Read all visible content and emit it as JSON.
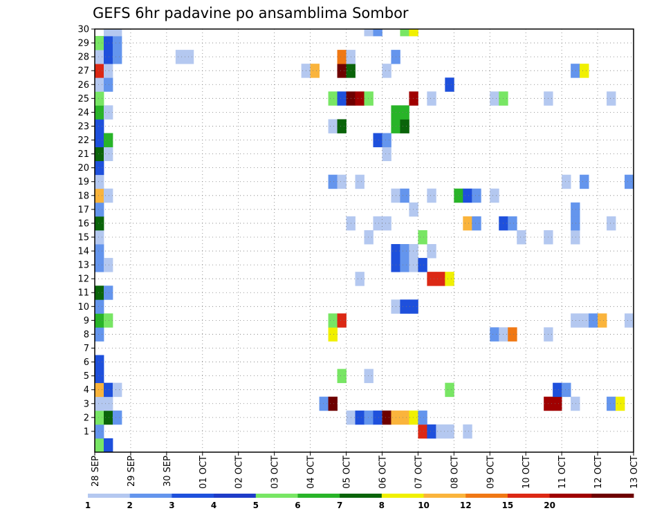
{
  "chart_data": {
    "type": "heatmap",
    "title": "GEFS 6hr padavine po ansamblima Sombor",
    "xlabel": "",
    "ylabel": "",
    "x_tick_labels": [
      "28 SEP",
      "29 SEP",
      "30 SEP",
      "01 OCT",
      "02 OCT",
      "03 OCT",
      "04 OCT",
      "05 OCT",
      "06 OCT",
      "07 OCT",
      "08 OCT",
      "09 OCT",
      "10 OCT",
      "11 OCT",
      "12 OCT",
      "13 OCT"
    ],
    "y_tick_labels": [
      "1",
      "2",
      "3",
      "4",
      "5",
      "6",
      "7",
      "8",
      "9",
      "10",
      "11",
      "12",
      "13",
      "14",
      "15",
      "16",
      "17",
      "18",
      "19",
      "20",
      "21",
      "22",
      "23",
      "24",
      "25",
      "26",
      "27",
      "28",
      "29",
      "30"
    ],
    "x_range_steps": [
      0,
      60
    ],
    "y_range_members": [
      0,
      30
    ],
    "grid": true,
    "colorbar": {
      "levels": [
        "1",
        "2",
        "3",
        "4",
        "5",
        "6",
        "7",
        "8",
        "10",
        "12",
        "15",
        "20"
      ],
      "colors": [
        "#b4c8f0",
        "#6495ed",
        "#1e50dc",
        "#1e3cc8",
        "#78e664",
        "#28b428",
        "#0a640a",
        "#f0f000",
        "#fab43c",
        "#f07814",
        "#dc2814",
        "#a00000",
        "#6e0000"
      ]
    },
    "cells": [
      {
        "member": 0,
        "step": 0,
        "color": "#78e664"
      },
      {
        "member": 0,
        "step": 1,
        "color": "#1e50dc"
      },
      {
        "member": 1,
        "step": 0,
        "color": "#6495ed"
      },
      {
        "member": 1,
        "step": 36,
        "color": "#dc2814"
      },
      {
        "member": 1,
        "step": 37,
        "color": "#1e50dc"
      },
      {
        "member": 1,
        "step": 38,
        "color": "#b4c8f0"
      },
      {
        "member": 1,
        "step": 39,
        "color": "#b4c8f0"
      },
      {
        "member": 1,
        "step": 41,
        "color": "#b4c8f0"
      },
      {
        "member": 2,
        "step": 0,
        "color": "#78e664"
      },
      {
        "member": 2,
        "step": 1,
        "color": "#0a640a"
      },
      {
        "member": 2,
        "step": 2,
        "color": "#6495ed"
      },
      {
        "member": 2,
        "step": 28,
        "color": "#b4c8f0"
      },
      {
        "member": 2,
        "step": 29,
        "color": "#1e50dc"
      },
      {
        "member": 2,
        "step": 30,
        "color": "#6495ed"
      },
      {
        "member": 2,
        "step": 31,
        "color": "#1e50dc"
      },
      {
        "member": 2,
        "step": 32,
        "color": "#6e0000"
      },
      {
        "member": 2,
        "step": 33,
        "color": "#fab43c"
      },
      {
        "member": 2,
        "step": 34,
        "color": "#fab43c"
      },
      {
        "member": 2,
        "step": 35,
        "color": "#f0f000"
      },
      {
        "member": 2,
        "step": 36,
        "color": "#6495ed"
      },
      {
        "member": 3,
        "step": 0,
        "color": "#b4c8f0"
      },
      {
        "member": 3,
        "step": 1,
        "color": "#b4c8f0"
      },
      {
        "member": 3,
        "step": 25,
        "color": "#6495ed"
      },
      {
        "member": 3,
        "step": 26,
        "color": "#6e0000"
      },
      {
        "member": 3,
        "step": 50,
        "color": "#a00000"
      },
      {
        "member": 3,
        "step": 51,
        "color": "#a00000"
      },
      {
        "member": 3,
        "step": 53,
        "color": "#b4c8f0"
      },
      {
        "member": 3,
        "step": 57,
        "color": "#6495ed"
      },
      {
        "member": 3,
        "step": 58,
        "color": "#f0f000"
      },
      {
        "member": 4,
        "step": 0,
        "color": "#fab43c"
      },
      {
        "member": 4,
        "step": 1,
        "color": "#1e50dc"
      },
      {
        "member": 4,
        "step": 2,
        "color": "#b4c8f0"
      },
      {
        "member": 4,
        "step": 39,
        "color": "#78e664"
      },
      {
        "member": 4,
        "step": 51,
        "color": "#1e50dc"
      },
      {
        "member": 4,
        "step": 52,
        "color": "#6495ed"
      },
      {
        "member": 5,
        "step": 0,
        "color": "#1e50dc"
      },
      {
        "member": 5,
        "step": 27,
        "color": "#78e664"
      },
      {
        "member": 5,
        "step": 30,
        "color": "#b4c8f0"
      },
      {
        "member": 6,
        "step": 0,
        "color": "#1e50dc"
      },
      {
        "member": 8,
        "step": 0,
        "color": "#6495ed"
      },
      {
        "member": 8,
        "step": 26,
        "color": "#f0f000"
      },
      {
        "member": 8,
        "step": 44,
        "color": "#6495ed"
      },
      {
        "member": 8,
        "step": 45,
        "color": "#b4c8f0"
      },
      {
        "member": 8,
        "step": 46,
        "color": "#f07814"
      },
      {
        "member": 8,
        "step": 50,
        "color": "#b4c8f0"
      },
      {
        "member": 9,
        "step": 0,
        "color": "#28b428"
      },
      {
        "member": 9,
        "step": 1,
        "color": "#78e664"
      },
      {
        "member": 9,
        "step": 26,
        "color": "#78e664"
      },
      {
        "member": 9,
        "step": 27,
        "color": "#dc2814"
      },
      {
        "member": 9,
        "step": 53,
        "color": "#b4c8f0"
      },
      {
        "member": 9,
        "step": 54,
        "color": "#b4c8f0"
      },
      {
        "member": 9,
        "step": 55,
        "color": "#6495ed"
      },
      {
        "member": 9,
        "step": 56,
        "color": "#fab43c"
      },
      {
        "member": 9,
        "step": 59,
        "color": "#b4c8f0"
      },
      {
        "member": 10,
        "step": 0,
        "color": "#6495ed"
      },
      {
        "member": 10,
        "step": 33,
        "color": "#b4c8f0"
      },
      {
        "member": 10,
        "step": 34,
        "color": "#1e50dc"
      },
      {
        "member": 10,
        "step": 35,
        "color": "#1e50dc"
      },
      {
        "member": 11,
        "step": 0,
        "color": "#0a640a"
      },
      {
        "member": 11,
        "step": 1,
        "color": "#6495ed"
      },
      {
        "member": 12,
        "step": 29,
        "color": "#b4c8f0"
      },
      {
        "member": 12,
        "step": 37,
        "color": "#dc2814"
      },
      {
        "member": 12,
        "step": 38,
        "color": "#dc2814"
      },
      {
        "member": 12,
        "step": 39,
        "color": "#f0f000"
      },
      {
        "member": 13,
        "step": 0,
        "color": "#6495ed"
      },
      {
        "member": 13,
        "step": 1,
        "color": "#b4c8f0"
      },
      {
        "member": 13,
        "step": 33,
        "color": "#1e50dc"
      },
      {
        "member": 13,
        "step": 34,
        "color": "#6495ed"
      },
      {
        "member": 13,
        "step": 35,
        "color": "#b4c8f0"
      },
      {
        "member": 13,
        "step": 36,
        "color": "#1e50dc"
      },
      {
        "member": 14,
        "step": 0,
        "color": "#6495ed"
      },
      {
        "member": 14,
        "step": 33,
        "color": "#1e50dc"
      },
      {
        "member": 14,
        "step": 34,
        "color": "#6495ed"
      },
      {
        "member": 14,
        "step": 35,
        "color": "#b4c8f0"
      },
      {
        "member": 14,
        "step": 37,
        "color": "#b4c8f0"
      },
      {
        "member": 15,
        "step": 0,
        "color": "#b4c8f0"
      },
      {
        "member": 15,
        "step": 30,
        "color": "#b4c8f0"
      },
      {
        "member": 15,
        "step": 36,
        "color": "#78e664"
      },
      {
        "member": 15,
        "step": 47,
        "color": "#b4c8f0"
      },
      {
        "member": 15,
        "step": 50,
        "color": "#b4c8f0"
      },
      {
        "member": 15,
        "step": 53,
        "color": "#b4c8f0"
      },
      {
        "member": 16,
        "step": 0,
        "color": "#0a640a"
      },
      {
        "member": 16,
        "step": 28,
        "color": "#b4c8f0"
      },
      {
        "member": 16,
        "step": 31,
        "color": "#b4c8f0"
      },
      {
        "member": 16,
        "step": 32,
        "color": "#b4c8f0"
      },
      {
        "member": 16,
        "step": 41,
        "color": "#fab43c"
      },
      {
        "member": 16,
        "step": 42,
        "color": "#6495ed"
      },
      {
        "member": 16,
        "step": 45,
        "color": "#1e50dc"
      },
      {
        "member": 16,
        "step": 46,
        "color": "#6495ed"
      },
      {
        "member": 16,
        "step": 53,
        "color": "#6495ed"
      },
      {
        "member": 16,
        "step": 57,
        "color": "#b4c8f0"
      },
      {
        "member": 17,
        "step": 0,
        "color": "#6495ed"
      },
      {
        "member": 17,
        "step": 35,
        "color": "#b4c8f0"
      },
      {
        "member": 17,
        "step": 53,
        "color": "#6495ed"
      },
      {
        "member": 18,
        "step": 0,
        "color": "#fab43c"
      },
      {
        "member": 18,
        "step": 1,
        "color": "#b4c8f0"
      },
      {
        "member": 18,
        "step": 33,
        "color": "#b4c8f0"
      },
      {
        "member": 18,
        "step": 34,
        "color": "#6495ed"
      },
      {
        "member": 18,
        "step": 37,
        "color": "#b4c8f0"
      },
      {
        "member": 18,
        "step": 40,
        "color": "#28b428"
      },
      {
        "member": 18,
        "step": 41,
        "color": "#1e50dc"
      },
      {
        "member": 18,
        "step": 42,
        "color": "#6495ed"
      },
      {
        "member": 18,
        "step": 44,
        "color": "#b4c8f0"
      },
      {
        "member": 19,
        "step": 0,
        "color": "#b4c8f0"
      },
      {
        "member": 19,
        "step": 26,
        "color": "#6495ed"
      },
      {
        "member": 19,
        "step": 27,
        "color": "#b4c8f0"
      },
      {
        "member": 19,
        "step": 29,
        "color": "#b4c8f0"
      },
      {
        "member": 19,
        "step": 52,
        "color": "#b4c8f0"
      },
      {
        "member": 19,
        "step": 54,
        "color": "#6495ed"
      },
      {
        "member": 19,
        "step": 59,
        "color": "#6495ed"
      },
      {
        "member": 20,
        "step": 0,
        "color": "#1e50dc"
      },
      {
        "member": 21,
        "step": 0,
        "color": "#0a640a"
      },
      {
        "member": 21,
        "step": 1,
        "color": "#b4c8f0"
      },
      {
        "member": 21,
        "step": 32,
        "color": "#b4c8f0"
      },
      {
        "member": 22,
        "step": 0,
        "color": "#1e50dc"
      },
      {
        "member": 22,
        "step": 1,
        "color": "#28b428"
      },
      {
        "member": 22,
        "step": 31,
        "color": "#1e50dc"
      },
      {
        "member": 22,
        "step": 32,
        "color": "#6495ed"
      },
      {
        "member": 23,
        "step": 0,
        "color": "#1e50dc"
      },
      {
        "member": 23,
        "step": 26,
        "color": "#b4c8f0"
      },
      {
        "member": 23,
        "step": 27,
        "color": "#0a640a"
      },
      {
        "member": 23,
        "step": 33,
        "color": "#28b428"
      },
      {
        "member": 23,
        "step": 34,
        "color": "#0a640a"
      },
      {
        "member": 24,
        "step": 0,
        "color": "#28b428"
      },
      {
        "member": 24,
        "step": 1,
        "color": "#b4c8f0"
      },
      {
        "member": 24,
        "step": 33,
        "color": "#28b428"
      },
      {
        "member": 24,
        "step": 34,
        "color": "#28b428"
      },
      {
        "member": 25,
        "step": 0,
        "color": "#78e664"
      },
      {
        "member": 25,
        "step": 26,
        "color": "#78e664"
      },
      {
        "member": 25,
        "step": 27,
        "color": "#1e50dc"
      },
      {
        "member": 25,
        "step": 28,
        "color": "#6e0000"
      },
      {
        "member": 25,
        "step": 29,
        "color": "#a00000"
      },
      {
        "member": 25,
        "step": 30,
        "color": "#78e664"
      },
      {
        "member": 25,
        "step": 35,
        "color": "#a00000"
      },
      {
        "member": 25,
        "step": 37,
        "color": "#b4c8f0"
      },
      {
        "member": 25,
        "step": 44,
        "color": "#b4c8f0"
      },
      {
        "member": 25,
        "step": 45,
        "color": "#78e664"
      },
      {
        "member": 25,
        "step": 50,
        "color": "#b4c8f0"
      },
      {
        "member": 25,
        "step": 57,
        "color": "#b4c8f0"
      },
      {
        "member": 26,
        "step": 0,
        "color": "#b4c8f0"
      },
      {
        "member": 26,
        "step": 1,
        "color": "#6495ed"
      },
      {
        "member": 26,
        "step": 39,
        "color": "#1e50dc"
      },
      {
        "member": 27,
        "step": 0,
        "color": "#dc2814"
      },
      {
        "member": 27,
        "step": 1,
        "color": "#b4c8f0"
      },
      {
        "member": 27,
        "step": 23,
        "color": "#b4c8f0"
      },
      {
        "member": 27,
        "step": 24,
        "color": "#fab43c"
      },
      {
        "member": 27,
        "step": 27,
        "color": "#6e0000"
      },
      {
        "member": 27,
        "step": 28,
        "color": "#0a640a"
      },
      {
        "member": 27,
        "step": 32,
        "color": "#b4c8f0"
      },
      {
        "member": 27,
        "step": 53,
        "color": "#6495ed"
      },
      {
        "member": 27,
        "step": 54,
        "color": "#f0f000"
      },
      {
        "member": 28,
        "step": 0,
        "color": "#b4c8f0"
      },
      {
        "member": 28,
        "step": 1,
        "color": "#1e50dc"
      },
      {
        "member": 28,
        "step": 2,
        "color": "#6495ed"
      },
      {
        "member": 28,
        "step": 9,
        "color": "#b4c8f0"
      },
      {
        "member": 28,
        "step": 10,
        "color": "#b4c8f0"
      },
      {
        "member": 28,
        "step": 27,
        "color": "#f07814"
      },
      {
        "member": 28,
        "step": 28,
        "color": "#b4c8f0"
      },
      {
        "member": 28,
        "step": 33,
        "color": "#6495ed"
      },
      {
        "member": 29,
        "step": 0,
        "color": "#78e664"
      },
      {
        "member": 29,
        "step": 1,
        "color": "#1e50dc"
      },
      {
        "member": 29,
        "step": 2,
        "color": "#6495ed"
      },
      {
        "member": 30,
        "step": 1,
        "color": "#b4c8f0"
      },
      {
        "member": 30,
        "step": 2,
        "color": "#b4c8f0"
      },
      {
        "member": 30,
        "step": 30,
        "color": "#b4c8f0"
      },
      {
        "member": 30,
        "step": 31,
        "color": "#6495ed"
      },
      {
        "member": 30,
        "step": 34,
        "color": "#78e664"
      },
      {
        "member": 30,
        "step": 35,
        "color": "#f0f000"
      }
    ]
  }
}
